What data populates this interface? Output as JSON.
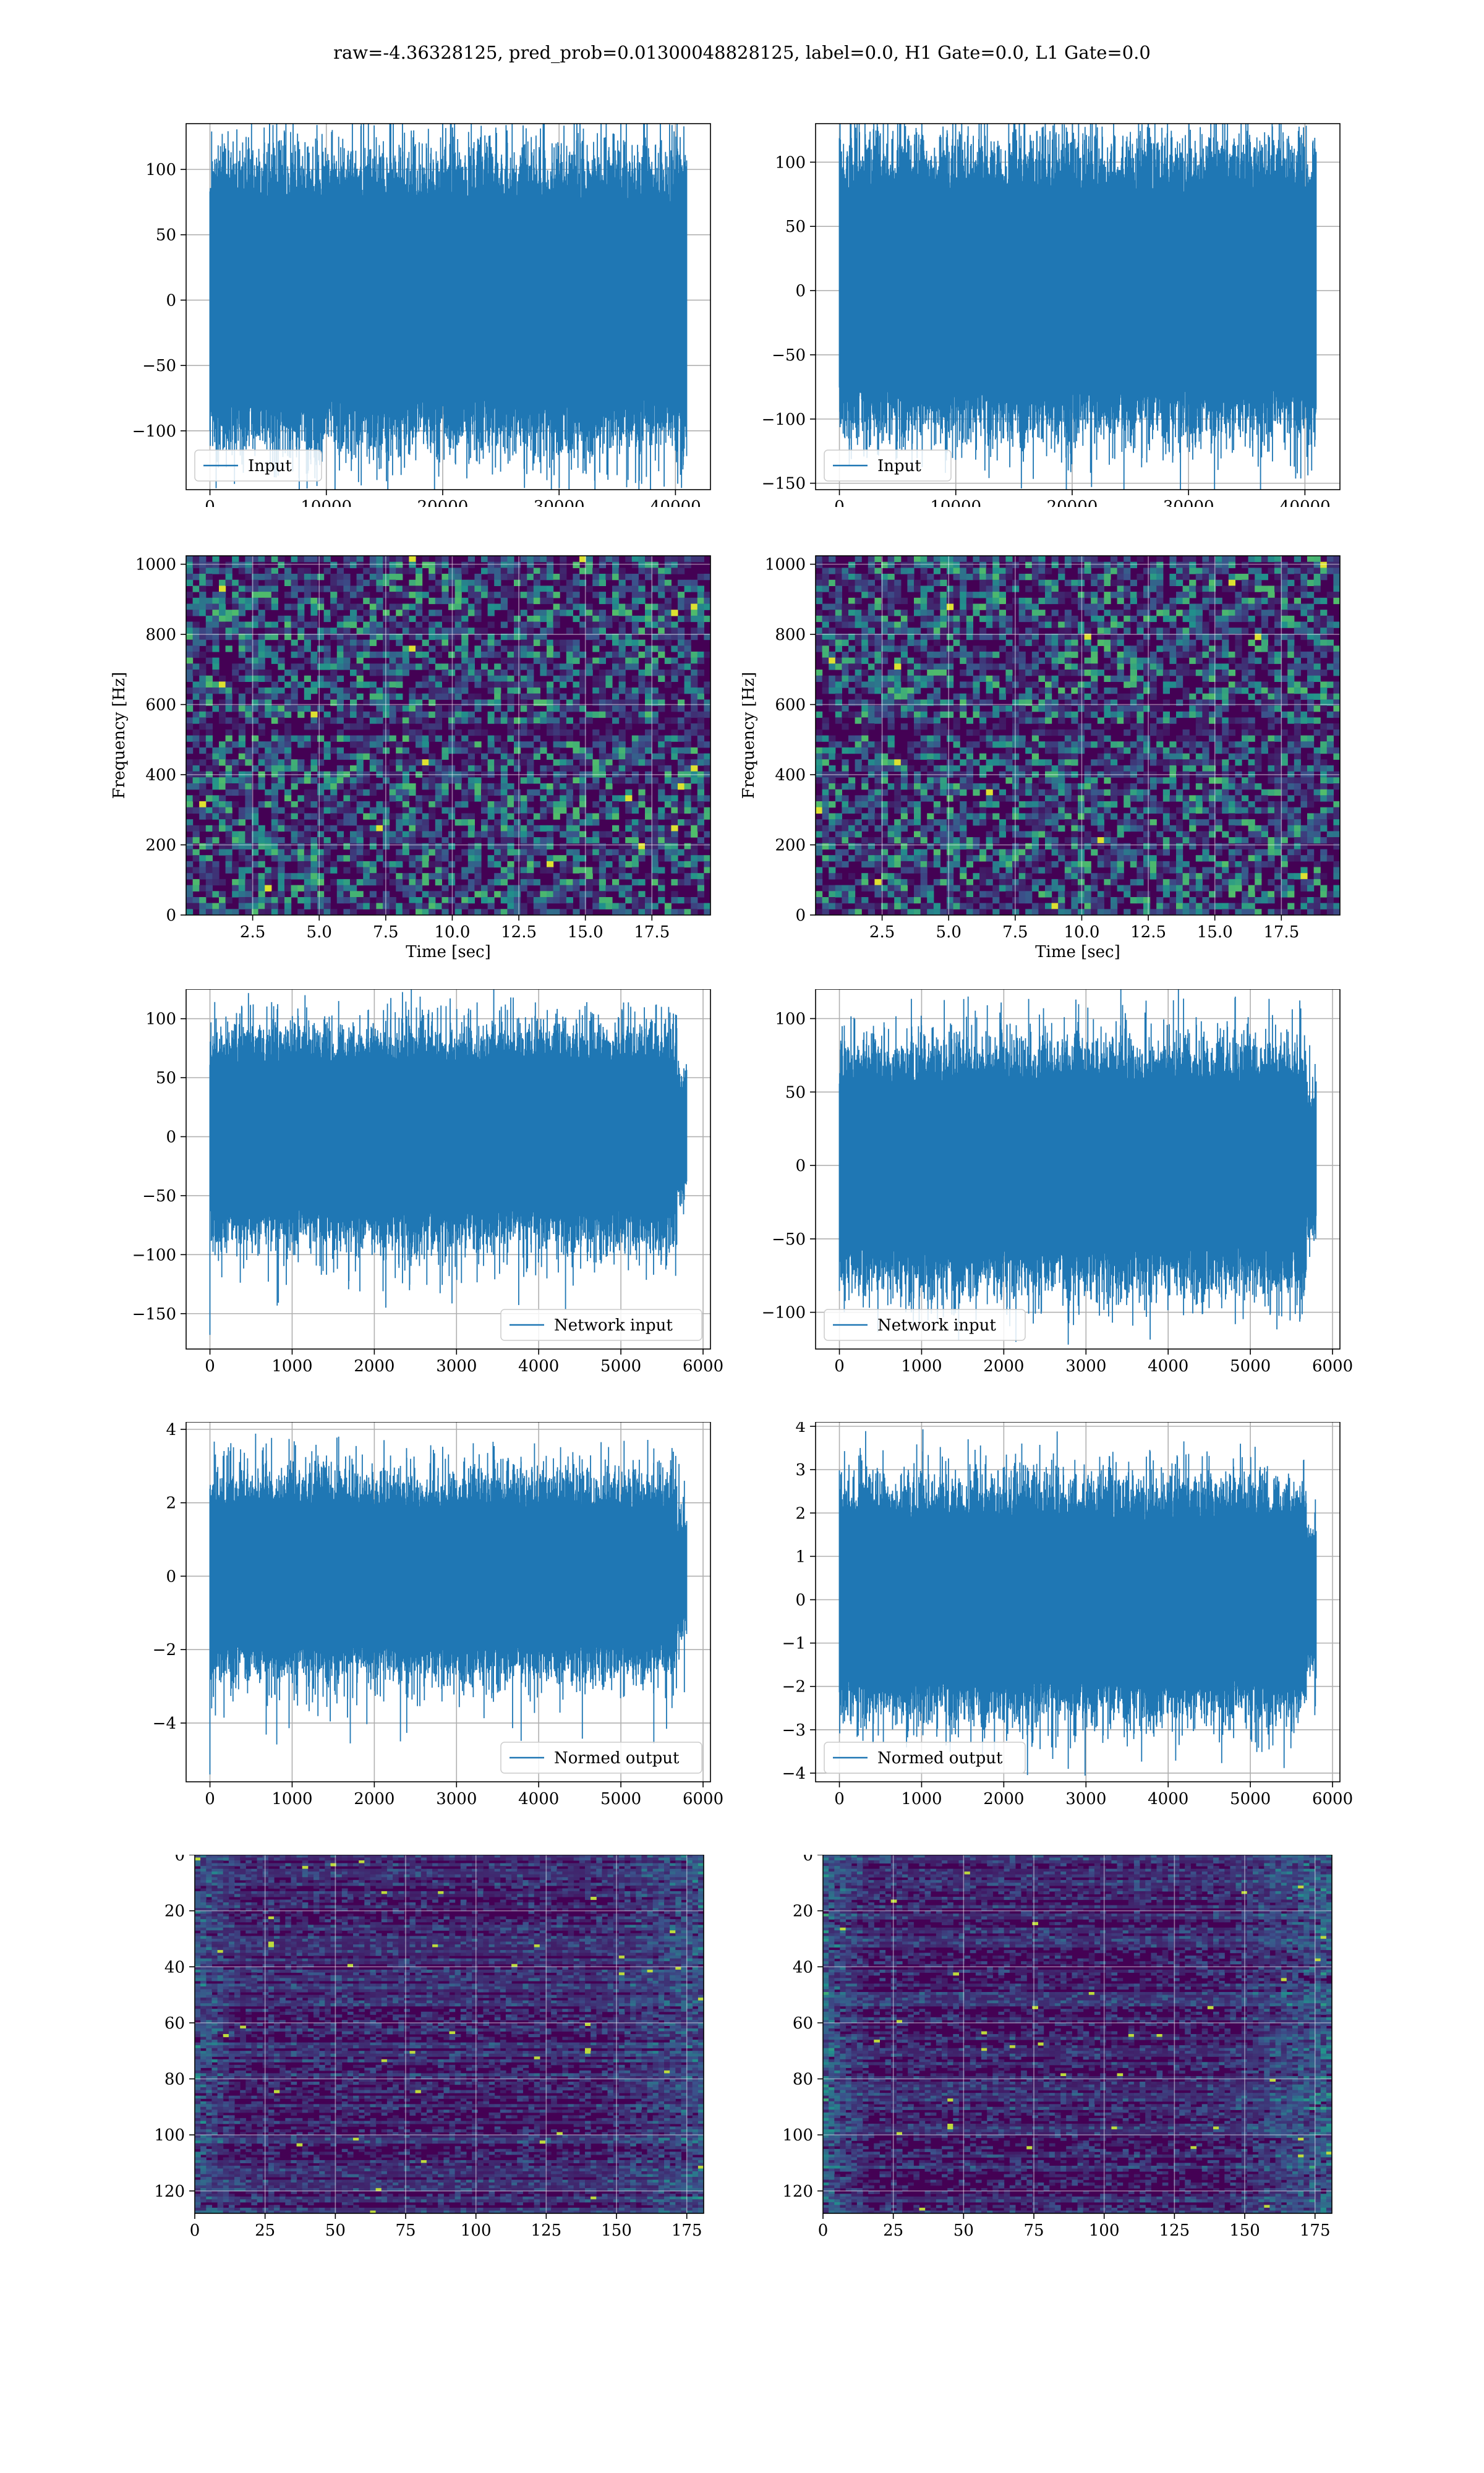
{
  "suptitle": "raw=-4.36328125, pred_prob=0.01300048828125, label=0.0, H1 Gate=0.0, L1 Gate=0.0",
  "colors": {
    "line": "#1f77b4",
    "grid": "#b0b0b0",
    "viridis_low": "#440154",
    "viridis_mid": "#21918c",
    "viridis_high": "#fde725"
  },
  "chart_data": [
    {
      "id": "input_h1",
      "type": "line",
      "row": 0,
      "col": 0,
      "x_range": [
        0,
        40960
      ],
      "xlim": [
        -2048,
        43008
      ],
      "ylim": [
        -145,
        135
      ],
      "xticks": [
        0,
        10000,
        20000,
        30000,
        40000
      ],
      "yticks": [
        -100,
        -50,
        0,
        50,
        100
      ],
      "xticklabels": [
        "0",
        "10000",
        "20000",
        "30000",
        "40000"
      ],
      "yticklabels": [
        "−100",
        "−50",
        "0",
        "50",
        "100"
      ],
      "envelope": {
        "band": 75,
        "peak_max": 125,
        "peak_min": -135
      },
      "legend": "Input",
      "legend_loc": "lower left",
      "grid": true
    },
    {
      "id": "input_l1",
      "type": "line",
      "row": 0,
      "col": 1,
      "x_range": [
        0,
        40960
      ],
      "xlim": [
        -2048,
        43008
      ],
      "ylim": [
        -155,
        130
      ],
      "xticks": [
        0,
        10000,
        20000,
        30000,
        40000
      ],
      "yticks": [
        -150,
        -100,
        -50,
        0,
        50,
        100
      ],
      "xticklabels": [
        "0",
        "10000",
        "20000",
        "30000",
        "40000"
      ],
      "yticklabels": [
        "−150",
        "−100",
        "−50",
        "0",
        "50",
        "100"
      ],
      "envelope": {
        "band": 75,
        "peak_max": 128,
        "peak_min": -140
      },
      "legend": "Input",
      "legend_loc": "lower left",
      "grid": true
    },
    {
      "id": "spec_h1",
      "type": "heatmap",
      "row": 1,
      "col": 0,
      "xlim": [
        0,
        19.7
      ],
      "ylim": [
        0,
        1024
      ],
      "xticks": [
        2.5,
        5.0,
        7.5,
        10.0,
        12.5,
        15.0,
        17.5
      ],
      "yticks": [
        0,
        200,
        400,
        600,
        800,
        1000
      ],
      "xticklabels": [
        "2.5",
        "5.0",
        "7.5",
        "10.0",
        "12.5",
        "15.0",
        "17.5"
      ],
      "yticklabels": [
        "0",
        "200",
        "400",
        "600",
        "800",
        "1000"
      ],
      "xlabel": "Time [sec]",
      "ylabel": "Frequency [Hz]",
      "colormap": "viridis",
      "grid": true
    },
    {
      "id": "spec_l1",
      "type": "heatmap",
      "row": 1,
      "col": 1,
      "xlim": [
        0,
        19.7
      ],
      "ylim": [
        0,
        1024
      ],
      "xticks": [
        2.5,
        5.0,
        7.5,
        10.0,
        12.5,
        15.0,
        17.5
      ],
      "yticks": [
        0,
        200,
        400,
        600,
        800,
        1000
      ],
      "xticklabels": [
        "2.5",
        "5.0",
        "7.5",
        "10.0",
        "12.5",
        "15.0",
        "17.5"
      ],
      "yticklabels": [
        "0",
        "200",
        "400",
        "600",
        "800",
        "1000"
      ],
      "xlabel": "Time [sec]",
      "ylabel": "Frequency [Hz]",
      "colormap": "viridis",
      "grid": true
    },
    {
      "id": "net_h1",
      "type": "line",
      "row": 2,
      "col": 0,
      "x_range": [
        0,
        5800
      ],
      "xlim": [
        -290,
        6090
      ],
      "ylim": [
        -180,
        125
      ],
      "xticks": [
        0,
        1000,
        2000,
        3000,
        4000,
        5000,
        6000
      ],
      "yticks": [
        -150,
        -100,
        -50,
        0,
        50,
        100
      ],
      "xticklabels": [
        "0",
        "1000",
        "2000",
        "3000",
        "4000",
        "5000",
        "6000"
      ],
      "yticklabels": [
        "−150",
        "−100",
        "−50",
        "0",
        "50",
        "100"
      ],
      "envelope": {
        "band": 60,
        "peak_max": 115,
        "peak_min": -168
      },
      "legend": "Network input",
      "legend_loc": "lower right",
      "grid": true
    },
    {
      "id": "net_l1",
      "type": "line",
      "row": 2,
      "col": 1,
      "x_range": [
        0,
        5800
      ],
      "xlim": [
        -290,
        6090
      ],
      "ylim": [
        -125,
        120
      ],
      "xticks": [
        0,
        1000,
        2000,
        3000,
        4000,
        5000,
        6000
      ],
      "yticks": [
        -100,
        -50,
        0,
        50,
        100
      ],
      "xticklabels": [
        "0",
        "1000",
        "2000",
        "3000",
        "4000",
        "5000",
        "6000"
      ],
      "yticklabels": [
        "−100",
        "−50",
        "0",
        "50",
        "100"
      ],
      "envelope": {
        "band": 55,
        "peak_max": 115,
        "peak_min": -122
      },
      "legend": "Network input",
      "legend_loc": "lower left",
      "grid": true
    },
    {
      "id": "norm_h1",
      "type": "line",
      "row": 3,
      "col": 0,
      "x_range": [
        0,
        5800
      ],
      "xlim": [
        -290,
        6090
      ],
      "ylim": [
        -5.6,
        4.2
      ],
      "xticks": [
        0,
        1000,
        2000,
        3000,
        4000,
        5000,
        6000
      ],
      "yticks": [
        -4,
        -2,
        0,
        2,
        4
      ],
      "xticklabels": [
        "0",
        "1000",
        "2000",
        "3000",
        "4000",
        "5000",
        "6000"
      ],
      "yticklabels": [
        "−4",
        "−2",
        "0",
        "2",
        "4"
      ],
      "envelope": {
        "band": 1.8,
        "peak_max": 3.8,
        "peak_min": -5.4
      },
      "legend": "Normed output",
      "legend_loc": "lower right",
      "grid": true
    },
    {
      "id": "norm_l1",
      "type": "line",
      "row": 3,
      "col": 1,
      "x_range": [
        0,
        5800
      ],
      "xlim": [
        -290,
        6090
      ],
      "ylim": [
        -4.2,
        4.1
      ],
      "xticks": [
        0,
        1000,
        2000,
        3000,
        4000,
        5000,
        6000
      ],
      "yticks": [
        -4,
        -3,
        -2,
        -1,
        0,
        1,
        2,
        3,
        4
      ],
      "xticklabels": [
        "0",
        "1000",
        "2000",
        "3000",
        "4000",
        "5000",
        "6000"
      ],
      "yticklabels": [
        "−4",
        "−3",
        "−2",
        "−1",
        "0",
        "1",
        "2",
        "3",
        "4"
      ],
      "envelope": {
        "band": 1.8,
        "peak_max": 3.7,
        "peak_min": -3.9
      },
      "legend": "Normed output",
      "legend_loc": "lower left",
      "grid": true
    },
    {
      "id": "feat_h1",
      "type": "heatmap",
      "row": 4,
      "col": 0,
      "xlim": [
        0,
        181
      ],
      "ylim": [
        128,
        0
      ],
      "xticks": [
        0,
        25,
        50,
        75,
        100,
        125,
        150,
        175
      ],
      "yticks": [
        0,
        20,
        40,
        60,
        80,
        100,
        120
      ],
      "xticklabels": [
        "0",
        "25",
        "50",
        "75",
        "100",
        "125",
        "150",
        "175"
      ],
      "yticklabels": [
        "0",
        "20",
        "40",
        "60",
        "80",
        "100",
        "120"
      ],
      "colormap": "viridis",
      "grid": true
    },
    {
      "id": "feat_l1",
      "type": "heatmap",
      "row": 4,
      "col": 1,
      "xlim": [
        0,
        181
      ],
      "ylim": [
        128,
        0
      ],
      "xticks": [
        0,
        25,
        50,
        75,
        100,
        125,
        150,
        175
      ],
      "yticks": [
        0,
        20,
        40,
        60,
        80,
        100,
        120
      ],
      "xticklabels": [
        "0",
        "25",
        "50",
        "75",
        "100",
        "125",
        "150",
        "175"
      ],
      "yticklabels": [
        "0",
        "20",
        "40",
        "60",
        "80",
        "100",
        "120"
      ],
      "colormap": "viridis",
      "grid": true
    }
  ]
}
